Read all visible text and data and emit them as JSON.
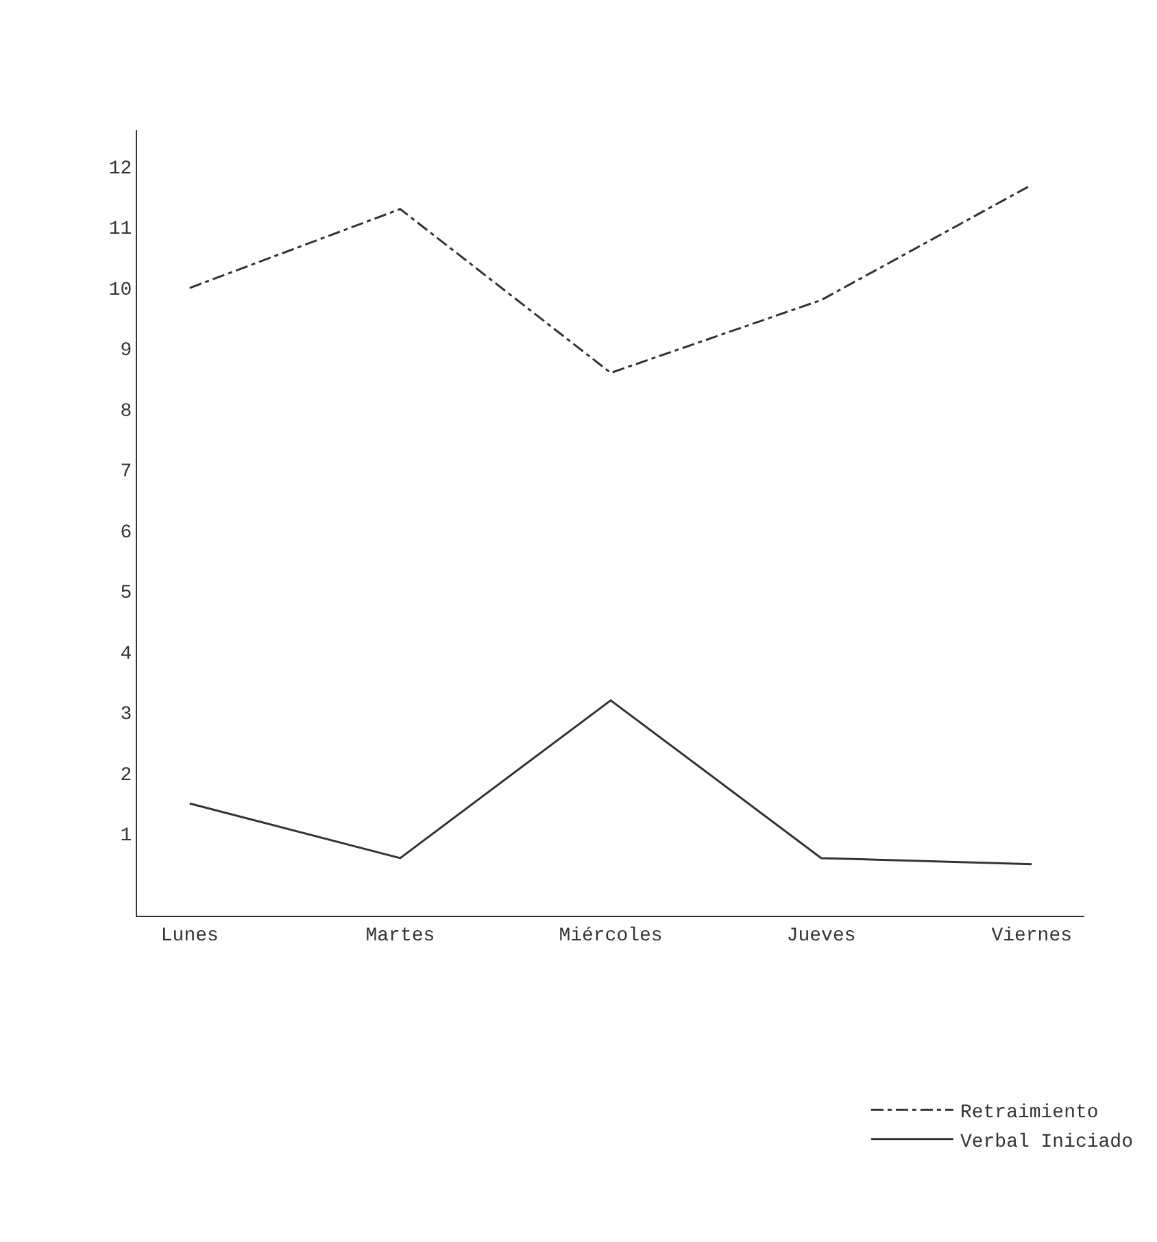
{
  "chart_data": {
    "type": "line",
    "categories": [
      "Lunes",
      "Martes",
      "Miércoles",
      "Jueves",
      "Viernes"
    ],
    "series": [
      {
        "name": "Retraimiento",
        "color": "#333333",
        "line_style": "dashed",
        "values": [
          10,
          11.3,
          8.6,
          9.8,
          11.7
        ]
      },
      {
        "name": "Verbal Iniciado",
        "color": "#333333",
        "line_style": "solid",
        "values": [
          1.5,
          0.6,
          3.2,
          0.6,
          0.5
        ]
      }
    ],
    "ylim": [
      -0.35,
      12.6
    ],
    "yticks": [
      1,
      2,
      3,
      4,
      5,
      6,
      7,
      8,
      9,
      10,
      11,
      12
    ],
    "grid": false,
    "legend": "bottom right",
    "marker": "none"
  }
}
